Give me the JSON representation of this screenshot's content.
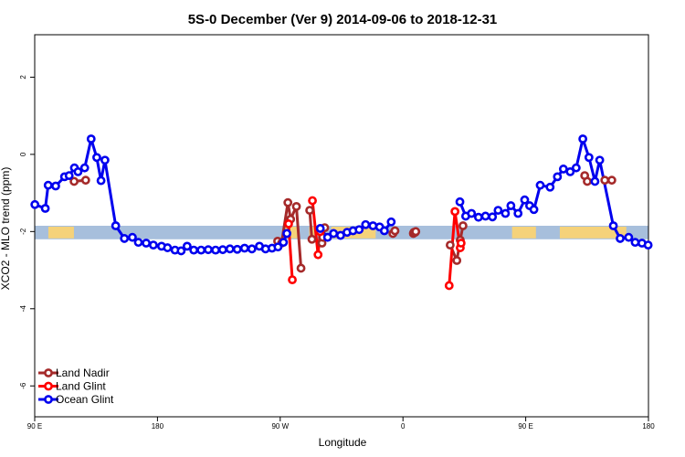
{
  "chart_data": {
    "type": "line",
    "title": "5S-0 December (Ver 9)   2014-09-06 to 2018-12-31",
    "xlabel": "Longitude",
    "ylabel": "XCO2 - MLO trend (ppm)",
    "xlim": [
      90,
      450
    ],
    "ylim": [
      -6.8,
      3.1
    ],
    "x_ticks": [
      {
        "value": 90,
        "label": "90 E"
      },
      {
        "value": 162,
        "label": "180"
      },
      {
        "value": 234,
        "label": "90 W"
      },
      {
        "value": 306,
        "label": "0"
      },
      {
        "value": 378,
        "label": "90 E"
      },
      {
        "value": 450,
        "label": "180"
      }
    ],
    "y_ticks": [
      {
        "value": 2,
        "label": "2"
      },
      {
        "value": 0,
        "label": "0"
      },
      {
        "value": -2,
        "label": "-2"
      },
      {
        "value": -4,
        "label": "-4"
      },
      {
        "value": -6,
        "label": "-6"
      }
    ],
    "reference_band": {
      "y_from": -2.2,
      "y_to": -1.85,
      "color": "#a7bfdc"
    },
    "land_color": "#f5d27a",
    "land_segments": [
      [
        98,
        113
      ],
      [
        236,
        244
      ],
      [
        251,
        254
      ],
      [
        264,
        290
      ],
      [
        370,
        384
      ],
      [
        398,
        437
      ]
    ],
    "legend_position": "bottom-left",
    "series": [
      {
        "name": "Land Nadir",
        "color": "#a52a2a",
        "segments": [
          [
            [
              113.1,
              -0.7
            ],
            [
              119.9,
              -0.67
            ]
          ],
          [
            [
              232.5,
              -2.25
            ],
            [
              234.8,
              -2.3
            ],
            [
              238.5,
              -1.25
            ],
            [
              240.1,
              -1.68
            ],
            [
              243.5,
              -1.35
            ],
            [
              246.2,
              -2.95
            ]
          ],
          [
            [
              251.3,
              -1.45
            ],
            [
              252.6,
              -2.2
            ],
            [
              258.5,
              -2.3
            ],
            [
              258.9,
              -2.15
            ],
            [
              260.1,
              -1.9
            ]
          ],
          [
            [
              300.1,
              -2.05
            ],
            [
              301.3,
              -1.98
            ]
          ],
          [
            [
              312.1,
              -2.05
            ],
            [
              313.2,
              -2.02
            ]
          ],
          [
            [
              312.4,
              -2.02
            ],
            [
              313.5,
              -2.0
            ]
          ],
          [
            [
              333.7,
              -2.35
            ],
            [
              337.6,
              -2.75
            ],
            [
              339.6,
              -2.22
            ],
            [
              341.2,
              -1.85
            ]
          ],
          [
            [
              412.6,
              -0.55
            ],
            [
              414.1,
              -0.7
            ]
          ],
          [
            [
              424.4,
              -0.67
            ],
            [
              428.5,
              -0.67
            ]
          ]
        ]
      },
      {
        "name": "Land Glint",
        "color": "#ff0000",
        "segments": [
          [
            [
              238.9,
              -1.8
            ],
            [
              241.1,
              -3.25
            ]
          ],
          [
            [
              252.9,
              -1.2
            ],
            [
              256.2,
              -2.6
            ],
            [
              257.4,
              -2.0
            ]
          ],
          [
            [
              333.1,
              -3.4
            ],
            [
              336.5,
              -1.48
            ],
            [
              339.6,
              -2.42
            ],
            [
              340.1,
              -2.3
            ]
          ]
        ]
      },
      {
        "name": "Ocean Glint",
        "color": "#0000ee",
        "segments": [
          [
            [
              90.1,
              -1.3
            ],
            [
              96.2,
              -1.4
            ],
            [
              97.9,
              -0.8
            ],
            [
              102.3,
              -0.82
            ],
            [
              107.5,
              -0.58
            ],
            [
              110.2,
              -0.55
            ],
            [
              113.3,
              -0.35
            ],
            [
              115.4,
              -0.45
            ],
            [
              119.3,
              -0.35
            ],
            [
              123.1,
              0.4
            ],
            [
              126.4,
              -0.08
            ],
            [
              128.9,
              -0.68
            ],
            [
              131.2,
              -0.15
            ],
            [
              137.5,
              -1.85
            ],
            [
              142.6,
              -2.18
            ],
            [
              147.3,
              -2.15
            ],
            [
              150.8,
              -2.28
            ],
            [
              155.4,
              -2.3
            ],
            [
              159.6,
              -2.35
            ],
            [
              164.4,
              -2.38
            ],
            [
              167.9,
              -2.42
            ],
            [
              172.3,
              -2.48
            ],
            [
              175.9,
              -2.5
            ],
            [
              179.4,
              -2.38
            ],
            [
              183.3,
              -2.48
            ],
            [
              187.6,
              -2.48
            ],
            [
              191.8,
              -2.47
            ],
            [
              196.1,
              -2.48
            ],
            [
              200.3,
              -2.47
            ],
            [
              204.5,
              -2.45
            ],
            [
              208.8,
              -2.46
            ],
            [
              213.1,
              -2.43
            ],
            [
              217.4,
              -2.45
            ],
            [
              221.8,
              -2.38
            ],
            [
              225.4,
              -2.45
            ],
            [
              229.2,
              -2.43
            ],
            [
              232.7,
              -2.4
            ],
            [
              235.9,
              -2.28
            ],
            [
              237.9,
              -2.05
            ]
          ],
          [
            [
              257.5,
              -1.92
            ],
            [
              261.8,
              -2.15
            ],
            [
              265.3,
              -2.05
            ],
            [
              269.4,
              -2.1
            ],
            [
              273.2,
              -2.02
            ],
            [
              276.7,
              -1.98
            ],
            [
              280.3,
              -1.95
            ],
            [
              284.1,
              -1.82
            ],
            [
              288.4,
              -1.85
            ],
            [
              292.3,
              -1.88
            ],
            [
              295.1,
              -1.98
            ],
            [
              299.1,
              -1.75
            ]
          ],
          [
            [
              339.4,
              -1.23
            ],
            [
              342.8,
              -1.6
            ],
            [
              346.2,
              -1.53
            ],
            [
              350.3,
              -1.63
            ],
            [
              354.4,
              -1.6
            ],
            [
              358.5,
              -1.62
            ],
            [
              361.8,
              -1.45
            ],
            [
              366.1,
              -1.53
            ],
            [
              369.3,
              -1.33
            ],
            [
              373.5,
              -1.53
            ],
            [
              377.4,
              -1.18
            ],
            [
              380.3,
              -1.33
            ],
            [
              382.8,
              -1.43
            ],
            [
              386.5,
              -0.8
            ],
            [
              392.3,
              -0.85
            ],
            [
              396.6,
              -0.58
            ],
            [
              400.1,
              -0.38
            ],
            [
              404.1,
              -0.45
            ],
            [
              407.6,
              -0.35
            ],
            [
              411.5,
              0.4
            ],
            [
              415.1,
              -0.08
            ],
            [
              418.6,
              -0.7
            ],
            [
              421.4,
              -0.15
            ],
            [
              429.4,
              -1.85
            ],
            [
              433.4,
              -2.18
            ],
            [
              438.4,
              -2.15
            ],
            [
              442.2,
              -2.28
            ],
            [
              446.2,
              -2.3
            ],
            [
              449.8,
              -2.35
            ]
          ]
        ]
      }
    ]
  }
}
